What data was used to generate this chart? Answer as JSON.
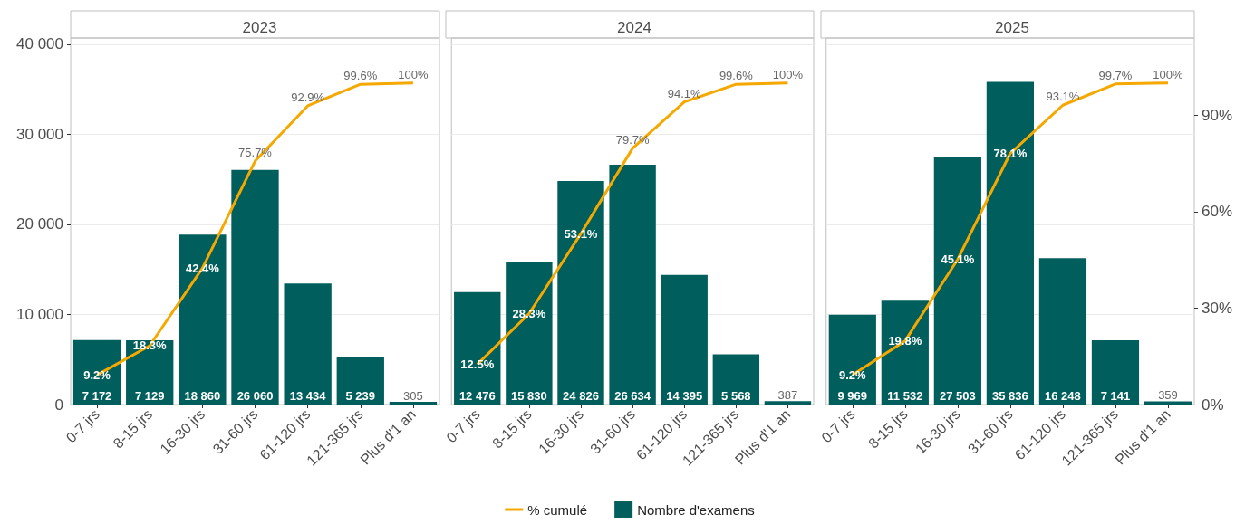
{
  "chart_data": [
    {
      "type": "bar",
      "title": "2023",
      "categories": [
        "0-7 jrs",
        "8-15 jrs",
        "16-30 jrs",
        "31-60 jrs",
        "61-120 jrs",
        "121-365 jrs",
        "Plus d'1 an"
      ],
      "series": [
        {
          "color": "#005f5c",
          "values": [
            7172,
            7129,
            18860,
            26060,
            13434,
            5239,
            305
          ],
          "value_labels": [
            "7 172",
            "7 129",
            "18 860",
            "26 060",
            "13 434",
            "5 239",
            "305"
          ]
        },
        {
          "type": "line",
          "axis": "y2",
          "color": "#f5a800",
          "values": [
            9.2,
            18.3,
            42.4,
            75.7,
            92.9,
            99.6,
            100
          ],
          "value_labels": [
            "9.2%",
            "18.3%",
            "42.4%",
            "75.7%",
            "92.9%",
            "99.6%",
            "100%"
          ]
        }
      ],
      "ylim": [
        0,
        40700
      ],
      "yticks": [
        {
          "value": 0,
          "label": "0"
        },
        {
          "value": 10000,
          "label": "10 000"
        },
        {
          "value": 20000,
          "label": "20 000"
        },
        {
          "value": 30000,
          "label": "30 000"
        },
        {
          "value": 40000,
          "label": "40 000"
        }
      ],
      "y2lim": [
        0,
        114
      ],
      "grid": "y",
      "marker": "none",
      "tick_labels": [
        "x",
        "y"
      ]
    },
    {
      "type": "bar",
      "title": "2024",
      "categories": [
        "0-7 jrs",
        "8-15 jrs",
        "16-30 jrs",
        "31-60 jrs",
        "61-120 jrs",
        "121-365 jrs",
        "Plus d'1 an"
      ],
      "series": [
        {
          "name": "Nombre d'examens",
          "color": "#005f5c",
          "values": [
            12476,
            15830,
            24826,
            26634,
            14395,
            5568,
            387
          ],
          "value_labels": [
            "12 476",
            "15 830",
            "24 826",
            "26 634",
            "14 395",
            "5 568",
            "387"
          ]
        },
        {
          "type": "line",
          "name": "% cumulé",
          "axis": "y2",
          "color": "#f5a800",
          "values": [
            12.5,
            28.3,
            53.1,
            79.7,
            94.1,
            99.6,
            100
          ],
          "value_labels": [
            "12.5%",
            "28.3%",
            "53.1%",
            "79.7%",
            "94.1%",
            "99.6%",
            "100%"
          ]
        }
      ],
      "ylim": [
        0,
        40700
      ],
      "y2lim": [
        0,
        114
      ],
      "grid": "y",
      "marker": "none",
      "legend": "bottom",
      "tick_labels": [
        "x"
      ]
    },
    {
      "type": "bar",
      "title": "2025",
      "categories": [
        "0-7 jrs",
        "8-15 jrs",
        "16-30 jrs",
        "31-60 jrs",
        "61-120 jrs",
        "121-365 jrs",
        "Plus d'1 an"
      ],
      "series": [
        {
          "color": "#005f5c",
          "values": [
            9969,
            11532,
            27503,
            35836,
            16248,
            7141,
            359
          ],
          "value_labels": [
            "9 969",
            "11 532",
            "27 503",
            "35 836",
            "16 248",
            "7 141",
            "359"
          ]
        },
        {
          "type": "line",
          "axis": "y2",
          "color": "#f5a800",
          "values": [
            9.2,
            19.8,
            45.1,
            78.1,
            93.1,
            99.7,
            100
          ],
          "value_labels": [
            "9.2%",
            "19.8%",
            "45.1%",
            "78.1%",
            "93.1%",
            "99.7%",
            "100%"
          ]
        }
      ],
      "ylim": [
        0,
        40700
      ],
      "y2lim": [
        0,
        114
      ],
      "y2ticks": [
        {
          "value": 0,
          "label": "0%"
        },
        {
          "value": 30,
          "label": "30%"
        },
        {
          "value": 60,
          "label": "60%"
        },
        {
          "value": 90,
          "label": "90%"
        }
      ],
      "grid": "y",
      "marker": "none",
      "tick_labels": [
        "x",
        "y2"
      ]
    }
  ]
}
